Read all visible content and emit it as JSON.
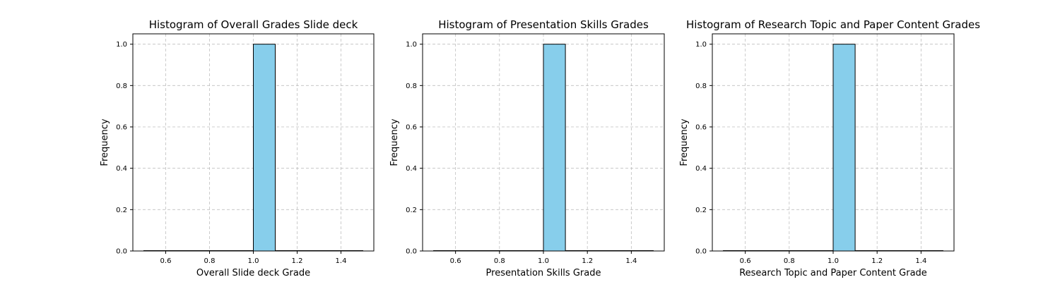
{
  "chart_data": [
    {
      "type": "bar",
      "title": "Histogram of Overall Grades Slide deck",
      "xlabel": "Overall Slide deck Grade",
      "ylabel": "Frequency",
      "xlim": [
        0.45,
        1.55
      ],
      "ylim": [
        0.0,
        1.05
      ],
      "xticks": [
        "0.6",
        "0.8",
        "1.0",
        "1.2",
        "1.4"
      ],
      "yticks": [
        "0.0",
        "0.2",
        "0.4",
        "0.6",
        "0.8",
        "1.0"
      ],
      "bin_edges": [
        0.5,
        0.6,
        0.7,
        0.8,
        0.9,
        1.0,
        1.1,
        1.2,
        1.3,
        1.4,
        1.5
      ],
      "values": [
        0,
        0,
        0,
        0,
        0,
        1,
        0,
        0,
        0,
        0
      ],
      "bar_color": "#87ceeb",
      "grid": true
    },
    {
      "type": "bar",
      "title": "Histogram of Presentation Skills Grades",
      "xlabel": "Presentation Skills Grade",
      "ylabel": "Frequency",
      "xlim": [
        0.45,
        1.55
      ],
      "ylim": [
        0.0,
        1.05
      ],
      "xticks": [
        "0.6",
        "0.8",
        "1.0",
        "1.2",
        "1.4"
      ],
      "yticks": [
        "0.0",
        "0.2",
        "0.4",
        "0.6",
        "0.8",
        "1.0"
      ],
      "bin_edges": [
        0.5,
        0.6,
        0.7,
        0.8,
        0.9,
        1.0,
        1.1,
        1.2,
        1.3,
        1.4,
        1.5
      ],
      "values": [
        0,
        0,
        0,
        0,
        0,
        1,
        0,
        0,
        0,
        0
      ],
      "bar_color": "#87ceeb",
      "grid": true
    },
    {
      "type": "bar",
      "title": "Histogram of Research Topic and Paper Content Grades",
      "xlabel": "Research Topic and Paper Content Grade",
      "ylabel": "Frequency",
      "xlim": [
        0.45,
        1.55
      ],
      "ylim": [
        0.0,
        1.05
      ],
      "xticks": [
        "0.6",
        "0.8",
        "1.0",
        "1.2",
        "1.4"
      ],
      "yticks": [
        "0.0",
        "0.2",
        "0.4",
        "0.6",
        "0.8",
        "1.0"
      ],
      "bin_edges": [
        0.5,
        0.6,
        0.7,
        0.8,
        0.9,
        1.0,
        1.1,
        1.2,
        1.3,
        1.4,
        1.5
      ],
      "values": [
        0,
        0,
        0,
        0,
        0,
        1,
        0,
        0,
        0,
        0
      ],
      "bar_color": "#87ceeb",
      "grid": true
    }
  ]
}
